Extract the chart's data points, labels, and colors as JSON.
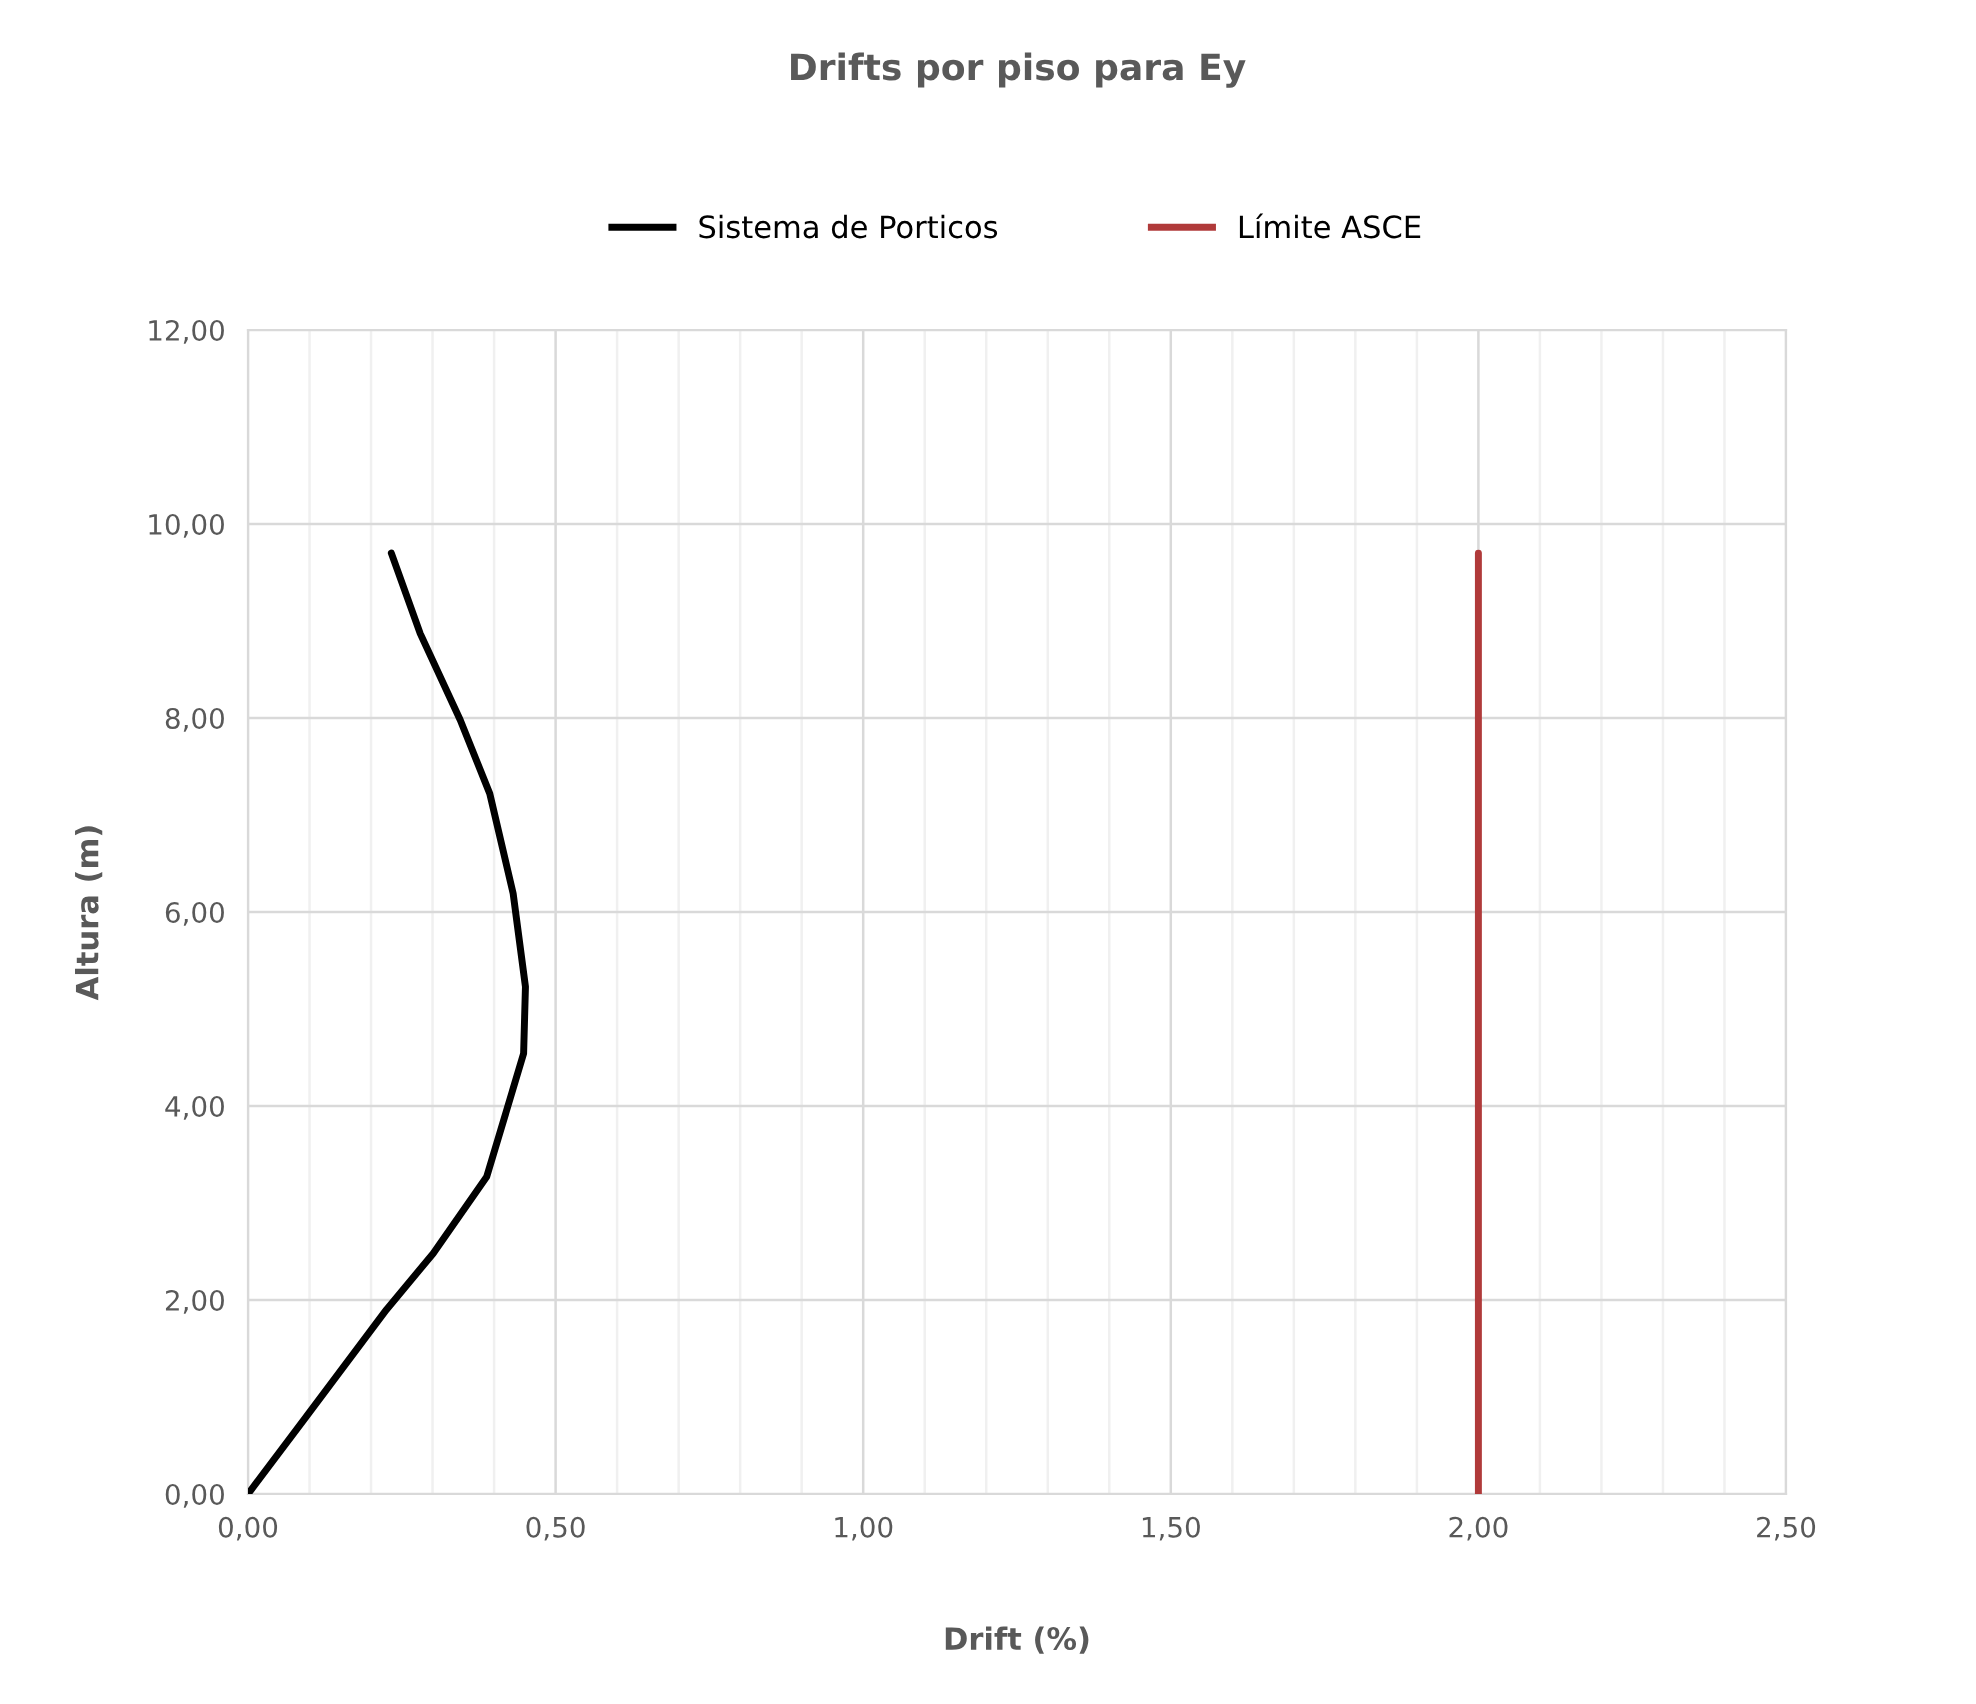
{
  "chart_data": {
    "type": "line",
    "title": "Drifts por piso para Ey",
    "xlabel": "Drift (%)",
    "ylabel": "Altura (m)",
    "series": [
      {
        "name": "Sistema de Porticos",
        "color": "#000000",
        "x": [
          0,
          0.095,
          0.225,
          0.301,
          0.388,
          0.448,
          0.451,
          0.431,
          0.393,
          0.345,
          0.28,
          0.233
        ],
        "values": [
          0,
          0.8,
          1.9,
          2.48,
          3.27,
          4.54,
          5.23,
          6.19,
          7.22,
          7.98,
          8.87,
          9.7
        ]
      },
      {
        "name": "Límite ASCE",
        "color": "#b03a3a",
        "x": [
          2.0,
          2.0
        ],
        "values": [
          0,
          9.7
        ]
      }
    ],
    "xlim": [
      0,
      2.5
    ],
    "ylim": [
      0,
      12
    ],
    "xticks": [
      {
        "value": 0,
        "label": "0,00"
      },
      {
        "value": 0.1,
        "label": null
      },
      {
        "value": 0.2,
        "label": null
      },
      {
        "value": 0.3,
        "label": null
      },
      {
        "value": 0.4,
        "label": null
      },
      {
        "value": 0.5,
        "label": "0,50"
      },
      {
        "value": 0.6,
        "label": null
      },
      {
        "value": 0.7,
        "label": null
      },
      {
        "value": 0.8,
        "label": null
      },
      {
        "value": 0.9,
        "label": null
      },
      {
        "value": 1.0,
        "label": "1,00"
      },
      {
        "value": 1.1,
        "label": null
      },
      {
        "value": 1.2,
        "label": null
      },
      {
        "value": 1.3,
        "label": null
      },
      {
        "value": 1.4,
        "label": null
      },
      {
        "value": 1.5,
        "label": "1,50"
      },
      {
        "value": 1.6,
        "label": null
      },
      {
        "value": 1.7,
        "label": null
      },
      {
        "value": 1.8,
        "label": null
      },
      {
        "value": 1.9,
        "label": null
      },
      {
        "value": 2.0,
        "label": "2,00"
      },
      {
        "value": 2.1,
        "label": null
      },
      {
        "value": 2.2,
        "label": null
      },
      {
        "value": 2.3,
        "label": null
      },
      {
        "value": 2.4,
        "label": null
      },
      {
        "value": 2.5,
        "label": "2,50"
      }
    ],
    "yticks": [
      {
        "value": 0,
        "label": "0,00"
      },
      {
        "value": 2,
        "label": "2,00"
      },
      {
        "value": 4,
        "label": "4,00"
      },
      {
        "value": 6,
        "label": "6,00"
      },
      {
        "value": 8,
        "label": "8,00"
      },
      {
        "value": 10,
        "label": "10,00"
      },
      {
        "value": 12,
        "label": "12,00"
      }
    ],
    "grid": true,
    "legend": "top",
    "marker": "none",
    "line_style": "solid"
  }
}
